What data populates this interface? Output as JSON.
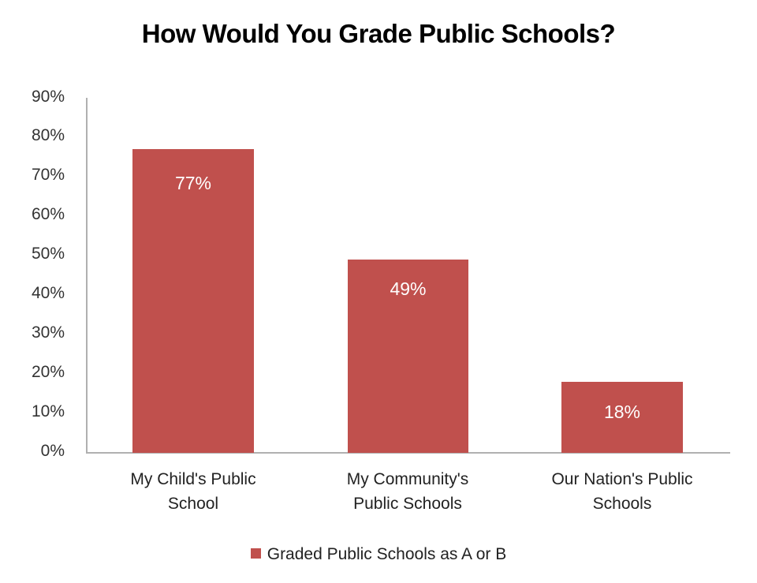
{
  "colors": {
    "bar": "#c0504d",
    "axis": "#b0b0b0",
    "text": "#222222"
  },
  "chart_data": {
    "type": "bar",
    "title": "How Would You Grade Public Schools?",
    "categories": [
      "My Child's Public School",
      "My Community's Public Schools",
      "Our Nation's Public Schools"
    ],
    "category_lines": [
      [
        "My Child's Public",
        "School"
      ],
      [
        "My Community's",
        "Public Schools"
      ],
      [
        "Our Nation's Public",
        "Schools"
      ]
    ],
    "series": [
      {
        "name": "Graded Public Schools as A or B",
        "values": [
          77,
          49,
          18
        ],
        "labels": [
          "77%",
          "49%",
          "18%"
        ],
        "color": "#c0504d"
      }
    ],
    "xlabel": "",
    "ylabel": "",
    "ylim": [
      0,
      90
    ],
    "yticks": [
      "0%",
      "10%",
      "20%",
      "30%",
      "40%",
      "50%",
      "60%",
      "70%",
      "80%",
      "90%"
    ],
    "grid": false,
    "legend_position": "bottom"
  }
}
